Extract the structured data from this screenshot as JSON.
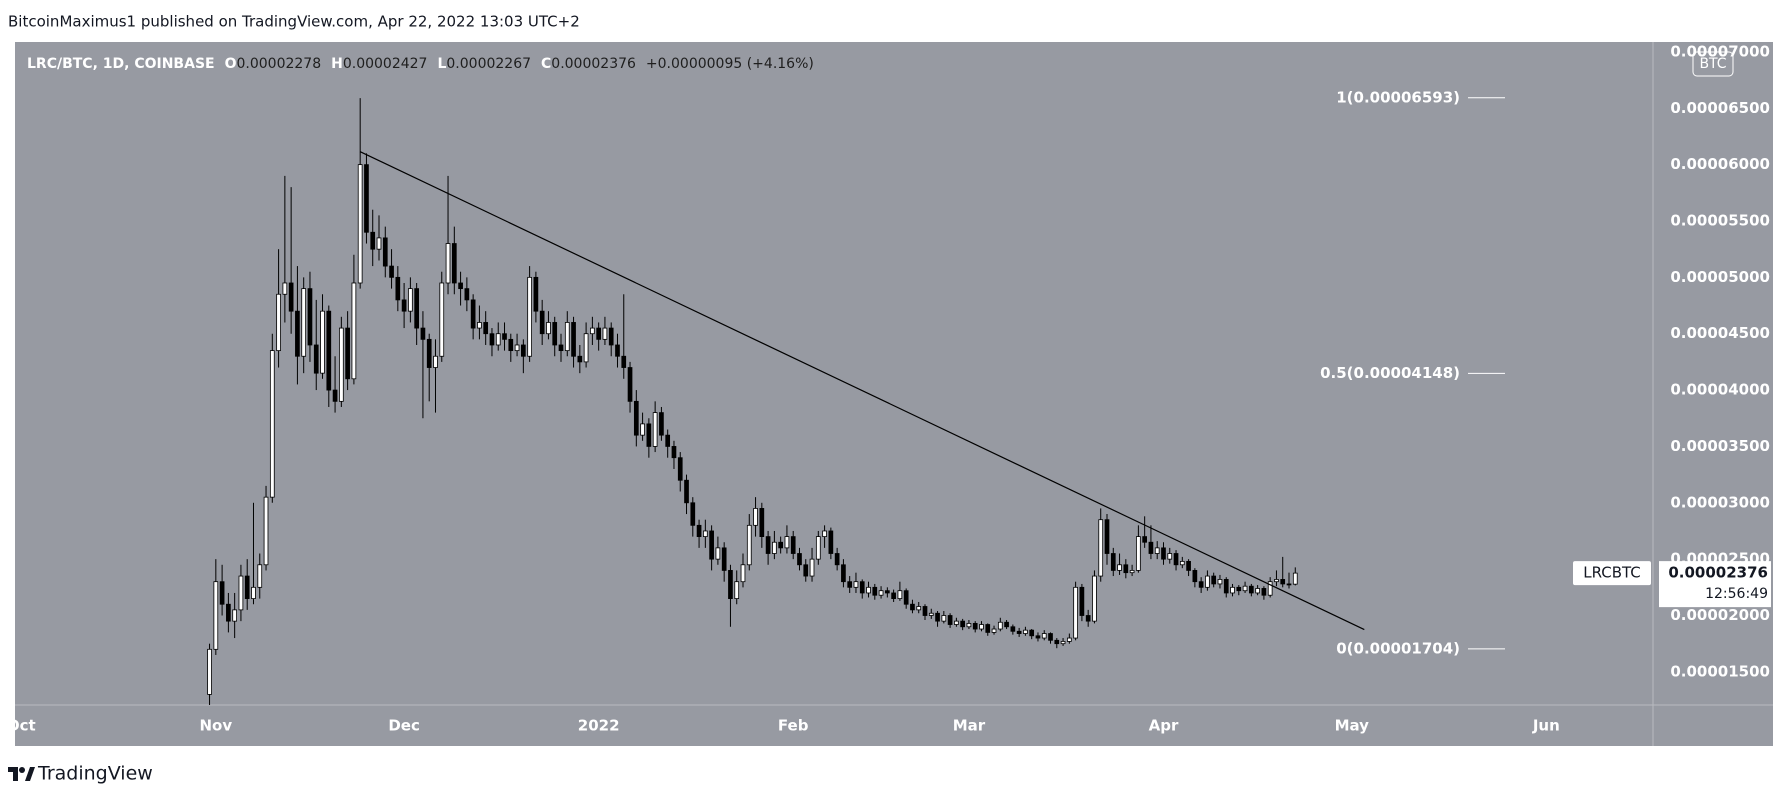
{
  "header": "BitcoinMaximus1 published on TradingView.com, Apr 22, 2022 13:03 UTC+2",
  "footer": "TradingView",
  "chart_data": {
    "type": "candlestick",
    "legend": {
      "title": "LRC/BTC, 1D, COINBASE",
      "fields": [
        {
          "key": "O",
          "value": "0.00002278"
        },
        {
          "key": "H",
          "value": "0.00002427"
        },
        {
          "key": "L",
          "value": "0.00002267"
        },
        {
          "key": "C",
          "value": "0.00002376"
        }
      ],
      "change": "+0.00000095 (+4.16%)"
    },
    "currency": "BTC",
    "symbol": "LRCBTC",
    "last_price": {
      "value": 2.376e-05,
      "label": "0.00002376"
    },
    "countdown": "12:56:49",
    "xlim": [
      -31,
      230
    ],
    "xticks": [
      {
        "value": -30,
        "label": "Oct"
      },
      {
        "value": 1,
        "label": "Nov"
      },
      {
        "value": 31,
        "label": "Dec"
      },
      {
        "value": 62,
        "label": "2022"
      },
      {
        "value": 93,
        "label": "Feb"
      },
      {
        "value": 121,
        "label": "Mar"
      },
      {
        "value": 152,
        "label": "Apr"
      },
      {
        "value": 182,
        "label": "May"
      },
      {
        "value": 213,
        "label": "Jun"
      }
    ],
    "ylim": [
      1.206e-05,
      7.088e-05
    ],
    "yticks": [
      {
        "value": 1.5e-05,
        "label": "0.00001500"
      },
      {
        "value": 2e-05,
        "label": "0.00002000"
      },
      {
        "value": 2.5e-05,
        "label": "0.00002500"
      },
      {
        "value": 3e-05,
        "label": "0.00003000"
      },
      {
        "value": 3.5e-05,
        "label": "0.00003500"
      },
      {
        "value": 4e-05,
        "label": "0.00004000"
      },
      {
        "value": 4.5e-05,
        "label": "0.00004500"
      },
      {
        "value": 5e-05,
        "label": "0.00005000"
      },
      {
        "value": 5.5e-05,
        "label": "0.00005500"
      },
      {
        "value": 6e-05,
        "label": "0.00006000"
      },
      {
        "value": 6.5e-05,
        "label": "0.00006500"
      },
      {
        "value": 7e-05,
        "label": "0.00007000"
      }
    ],
    "grid": false,
    "up_color": "#ffffff",
    "down_color": "#000000",
    "trendline": {
      "x": [
        24,
        184
      ],
      "y": [
        6.115e-05,
        1.875e-05
      ]
    },
    "fib_levels": [
      {
        "label": "1(0.00006593)",
        "value": 6.593e-05
      },
      {
        "label": "0.5(0.00004148)",
        "value": 4.148e-05
      },
      {
        "label": "0(0.00001704)",
        "value": 1.704e-05
      }
    ],
    "candles": [
      [
        1.3e-05,
        1.75e-05,
        1.2e-05,
        1.7e-05
      ],
      [
        1.7e-05,
        2.5e-05,
        1.65e-05,
        2.3e-05
      ],
      [
        2.3e-05,
        2.45e-05,
        2e-05,
        2.1e-05
      ],
      [
        2.1e-05,
        2.2e-05,
        1.85e-05,
        1.95e-05
      ],
      [
        1.95e-05,
        2.2e-05,
        1.8e-05,
        2.05e-05
      ],
      [
        2.05e-05,
        2.45e-05,
        1.95e-05,
        2.35e-05
      ],
      [
        2.35e-05,
        2.5e-05,
        2.05e-05,
        2.15e-05
      ],
      [
        2.15e-05,
        3e-05,
        2.1e-05,
        2.25e-05
      ],
      [
        2.25e-05,
        2.55e-05,
        2.15e-05,
        2.45e-05
      ],
      [
        2.45e-05,
        3.15e-05,
        2.4e-05,
        3.05e-05
      ],
      [
        3.05e-05,
        4.5e-05,
        3e-05,
        4.35e-05
      ],
      [
        4.35e-05,
        5.25e-05,
        4.2e-05,
        4.85e-05
      ],
      [
        4.85e-05,
        5.9e-05,
        4.6e-05,
        4.95e-05
      ],
      [
        4.95e-05,
        5.8e-05,
        4.5e-05,
        4.7e-05
      ],
      [
        4.7e-05,
        5.1e-05,
        4.05e-05,
        4.3e-05
      ],
      [
        4.3e-05,
        5e-05,
        4.15e-05,
        4.9e-05
      ],
      [
        4.9e-05,
        5.05e-05,
        4.25e-05,
        4.4e-05
      ],
      [
        4.4e-05,
        4.8e-05,
        4e-05,
        4.15e-05
      ],
      [
        4.15e-05,
        4.85e-05,
        4.1e-05,
        4.7e-05
      ],
      [
        4.7e-05,
        4.75e-05,
        3.85e-05,
        4e-05
      ],
      [
        4e-05,
        4.3e-05,
        3.8e-05,
        3.9e-05
      ],
      [
        3.9e-05,
        4.65e-05,
        3.85e-05,
        4.55e-05
      ],
      [
        4.55e-05,
        4.7e-05,
        4e-05,
        4.1e-05
      ],
      [
        4.1e-05,
        5.2e-05,
        4.05e-05,
        4.95e-05
      ],
      [
        4.95e-05,
        6.59e-05,
        4.9e-05,
        6e-05
      ],
      [
        6e-05,
        6.1e-05,
        5.3e-05,
        5.4e-05
      ],
      [
        5.4e-05,
        5.6e-05,
        5.1e-05,
        5.25e-05
      ],
      [
        5.25e-05,
        5.55e-05,
        5.15e-05,
        5.35e-05
      ],
      [
        5.35e-05,
        5.45e-05,
        5e-05,
        5.1e-05
      ],
      [
        5.1e-05,
        5.25e-05,
        4.9e-05,
        5e-05
      ],
      [
        5e-05,
        5.1e-05,
        4.7e-05,
        4.8e-05
      ],
      [
        4.8e-05,
        4.95e-05,
        4.55e-05,
        4.7e-05
      ],
      [
        4.7e-05,
        5e-05,
        4.6e-05,
        4.9e-05
      ],
      [
        4.9e-05,
        4.95e-05,
        4.4e-05,
        4.55e-05
      ],
      [
        4.55e-05,
        4.7e-05,
        3.75e-05,
        4.45e-05
      ],
      [
        4.45e-05,
        4.5e-05,
        3.9e-05,
        4.2e-05
      ],
      [
        4.2e-05,
        4.45e-05,
        3.8e-05,
        4.3e-05
      ],
      [
        4.3e-05,
        5.05e-05,
        4.25e-05,
        4.95e-05
      ],
      [
        4.95e-05,
        5.9e-05,
        4.85e-05,
        5.3e-05
      ],
      [
        5.3e-05,
        5.45e-05,
        4.85e-05,
        4.95e-05
      ],
      [
        4.95e-05,
        5.05e-05,
        4.75e-05,
        4.9e-05
      ],
      [
        4.9e-05,
        5e-05,
        4.7e-05,
        4.8e-05
      ],
      [
        4.8e-05,
        4.85e-05,
        4.45e-05,
        4.55e-05
      ],
      [
        4.55e-05,
        4.75e-05,
        4.45e-05,
        4.6e-05
      ],
      [
        4.6e-05,
        4.7e-05,
        4.4e-05,
        4.5e-05
      ],
      [
        4.5e-05,
        4.55e-05,
        4.3e-05,
        4.4e-05
      ],
      [
        4.4e-05,
        4.6e-05,
        4.35e-05,
        4.5e-05
      ],
      [
        4.5e-05,
        4.6e-05,
        4.35e-05,
        4.45e-05
      ],
      [
        4.45e-05,
        4.5e-05,
        4.25e-05,
        4.35e-05
      ],
      [
        4.35e-05,
        4.5e-05,
        4.3e-05,
        4.4e-05
      ],
      [
        4.4e-05,
        4.45e-05,
        4.15e-05,
        4.3e-05
      ],
      [
        4.3e-05,
        5.1e-05,
        4.25e-05,
        5e-05
      ],
      [
        5e-05,
        5.05e-05,
        4.6e-05,
        4.7e-05
      ],
      [
        4.7e-05,
        4.8e-05,
        4.4e-05,
        4.5e-05
      ],
      [
        4.5e-05,
        4.7e-05,
        4.45e-05,
        4.6e-05
      ],
      [
        4.6e-05,
        4.65e-05,
        4.3e-05,
        4.4e-05
      ],
      [
        4.4e-05,
        4.5e-05,
        4.25e-05,
        4.35e-05
      ],
      [
        4.35e-05,
        4.7e-05,
        4.3e-05,
        4.6e-05
      ],
      [
        4.6e-05,
        4.65e-05,
        4.2e-05,
        4.3e-05
      ],
      [
        4.3e-05,
        4.4e-05,
        4.15e-05,
        4.25e-05
      ],
      [
        4.25e-05,
        4.6e-05,
        4.2e-05,
        4.5e-05
      ],
      [
        4.5e-05,
        4.65e-05,
        4.4e-05,
        4.55e-05
      ],
      [
        4.55e-05,
        4.6e-05,
        4.35e-05,
        4.45e-05
      ],
      [
        4.45e-05,
        4.65e-05,
        4.4e-05,
        4.55e-05
      ],
      [
        4.55e-05,
        4.6e-05,
        4.3e-05,
        4.4e-05
      ],
      [
        4.4e-05,
        4.5e-05,
        4.2e-05,
        4.3e-05
      ],
      [
        4.3e-05,
        4.85e-05,
        4.1e-05,
        4.2e-05
      ],
      [
        4.2e-05,
        4.25e-05,
        3.8e-05,
        3.9e-05
      ],
      [
        3.9e-05,
        4e-05,
        3.5e-05,
        3.6e-05
      ],
      [
        3.6e-05,
        3.8e-05,
        3.55e-05,
        3.7e-05
      ],
      [
        3.7e-05,
        3.75e-05,
        3.4e-05,
        3.5e-05
      ],
      [
        3.5e-05,
        3.9e-05,
        3.45e-05,
        3.8e-05
      ],
      [
        3.8e-05,
        3.85e-05,
        3.55e-05,
        3.6e-05
      ],
      [
        3.6e-05,
        3.65e-05,
        3.4e-05,
        3.5e-05
      ],
      [
        3.5e-05,
        3.55e-05,
        3.3e-05,
        3.4e-05
      ],
      [
        3.4e-05,
        3.45e-05,
        3.1e-05,
        3.2e-05
      ],
      [
        3.2e-05,
        3.25e-05,
        2.9e-05,
        3e-05
      ],
      [
        3e-05,
        3.05e-05,
        2.7e-05,
        2.8e-05
      ],
      [
        2.8e-05,
        2.85e-05,
        2.6e-05,
        2.7e-05
      ],
      [
        2.7e-05,
        2.85e-05,
        2.6e-05,
        2.75e-05
      ],
      [
        2.75e-05,
        2.8e-05,
        2.4e-05,
        2.5e-05
      ],
      [
        2.5e-05,
        2.7e-05,
        2.45e-05,
        2.6e-05
      ],
      [
        2.6e-05,
        2.65e-05,
        2.3e-05,
        2.4e-05
      ],
      [
        2.4e-05,
        2.45e-05,
        1.9e-05,
        2.15e-05
      ],
      [
        2.15e-05,
        2.4e-05,
        2.1e-05,
        2.3e-05
      ],
      [
        2.3e-05,
        2.55e-05,
        2.25e-05,
        2.45e-05
      ],
      [
        2.45e-05,
        2.9e-05,
        2.4e-05,
        2.8e-05
      ],
      [
        2.8e-05,
        3.05e-05,
        2.7e-05,
        2.95e-05
      ],
      [
        2.95e-05,
        3e-05,
        2.6e-05,
        2.7e-05
      ],
      [
        2.7e-05,
        2.75e-05,
        2.45e-05,
        2.55e-05
      ],
      [
        2.55e-05,
        2.75e-05,
        2.5e-05,
        2.65e-05
      ],
      [
        2.65e-05,
        2.7e-05,
        2.55e-05,
        2.6e-05
      ],
      [
        2.6e-05,
        2.8e-05,
        2.55e-05,
        2.7e-05
      ],
      [
        2.7e-05,
        2.75e-05,
        2.5e-05,
        2.55e-05
      ],
      [
        2.55e-05,
        2.6e-05,
        2.4e-05,
        2.45e-05
      ],
      [
        2.45e-05,
        2.5e-05,
        2.3e-05,
        2.35e-05
      ],
      [
        2.35e-05,
        2.6e-05,
        2.3e-05,
        2.5e-05
      ],
      [
        2.5e-05,
        2.75e-05,
        2.45e-05,
        2.7e-05
      ],
      [
        2.7e-05,
        2.8e-05,
        2.6e-05,
        2.75e-05
      ],
      [
        2.75e-05,
        2.78e-05,
        2.5e-05,
        2.55e-05
      ],
      [
        2.55e-05,
        2.6e-05,
        2.4e-05,
        2.45e-05
      ],
      [
        2.45e-05,
        2.5e-05,
        2.25e-05,
        2.3e-05
      ],
      [
        2.3e-05,
        2.35e-05,
        2.2e-05,
        2.25e-05
      ],
      [
        2.25e-05,
        2.38e-05,
        2.2e-05,
        2.3e-05
      ],
      [
        2.3e-05,
        2.32e-05,
        2.15e-05,
        2.2e-05
      ],
      [
        2.2e-05,
        2.3e-05,
        2.16e-05,
        2.25e-05
      ],
      [
        2.25e-05,
        2.28e-05,
        2.14e-05,
        2.18e-05
      ],
      [
        2.18e-05,
        2.26e-05,
        2.15e-05,
        2.22e-05
      ],
      [
        2.22e-05,
        2.25e-05,
        2.16e-05,
        2.2e-05
      ],
      [
        2.2e-05,
        2.23e-05,
        2.12e-05,
        2.15e-05
      ],
      [
        2.15e-05,
        2.3e-05,
        2.13e-05,
        2.22e-05
      ],
      [
        2.22e-05,
        2.24e-05,
        2.06e-05,
        2.1e-05
      ],
      [
        2.1e-05,
        2.14e-05,
        2.02e-05,
        2.05e-05
      ],
      [
        2.05e-05,
        2.12e-05,
        2.02e-05,
        2.08e-05
      ],
      [
        2.08e-05,
        2.1e-05,
        1.96e-05,
        2e-05
      ],
      [
        2e-05,
        2.06e-05,
        1.97e-05,
        2.02e-05
      ],
      [
        2.02e-05,
        2.04e-05,
        1.9e-05,
        1.95e-05
      ],
      [
        1.95e-05,
        2.04e-05,
        1.93e-05,
        2e-05
      ],
      [
        2e-05,
        2.02e-05,
        1.89e-05,
        1.92e-05
      ],
      [
        1.92e-05,
        1.98e-05,
        1.9e-05,
        1.95e-05
      ],
      [
        1.95e-05,
        1.97e-05,
        1.87e-05,
        1.9e-05
      ],
      [
        1.9e-05,
        1.96e-05,
        1.88e-05,
        1.93e-05
      ],
      [
        1.93e-05,
        1.95e-05,
        1.85e-05,
        1.88e-05
      ],
      [
        1.88e-05,
        1.95e-05,
        1.86e-05,
        1.92e-05
      ],
      [
        1.92e-05,
        1.93e-05,
        1.82e-05,
        1.85e-05
      ],
      [
        1.85e-05,
        1.91e-05,
        1.83e-05,
        1.88e-05
      ],
      [
        1.88e-05,
        1.98e-05,
        1.86e-05,
        1.94e-05
      ],
      [
        1.94e-05,
        1.96e-05,
        1.88e-05,
        1.9e-05
      ],
      [
        1.9e-05,
        1.92e-05,
        1.83e-05,
        1.86e-05
      ],
      [
        1.86e-05,
        1.89e-05,
        1.81e-05,
        1.84e-05
      ],
      [
        1.84e-05,
        1.9e-05,
        1.82e-05,
        1.87e-05
      ],
      [
        1.87e-05,
        1.88e-05,
        1.79e-05,
        1.82e-05
      ],
      [
        1.82e-05,
        1.85e-05,
        1.77e-05,
        1.8e-05
      ],
      [
        1.8e-05,
        1.87e-05,
        1.78e-05,
        1.84e-05
      ],
      [
        1.84e-05,
        1.85e-05,
        1.75e-05,
        1.78e-05
      ],
      [
        1.78e-05,
        1.8e-05,
        1.71e-05,
        1.75e-05
      ],
      [
        1.75e-05,
        1.8e-05,
        1.73e-05,
        1.77e-05
      ],
      [
        1.77e-05,
        1.84e-05,
        1.75e-05,
        1.8e-05
      ],
      [
        1.8e-05,
        2.3e-05,
        1.78e-05,
        2.25e-05
      ],
      [
        2.25e-05,
        2.28e-05,
        1.95e-05,
        2e-05
      ],
      [
        2e-05,
        2.05e-05,
        1.9e-05,
        1.95e-05
      ],
      [
        1.95e-05,
        2.4e-05,
        1.93e-05,
        2.35e-05
      ],
      [
        2.35e-05,
        2.95e-05,
        2.3e-05,
        2.85e-05
      ],
      [
        2.85e-05,
        2.9e-05,
        2.45e-05,
        2.55e-05
      ],
      [
        2.55e-05,
        2.6e-05,
        2.35e-05,
        2.4e-05
      ],
      [
        2.4e-05,
        2.55e-05,
        2.36e-05,
        2.45e-05
      ],
      [
        2.45e-05,
        2.5e-05,
        2.33e-05,
        2.38e-05
      ],
      [
        2.38e-05,
        2.45e-05,
        2.35e-05,
        2.4e-05
      ],
      [
        2.4e-05,
        2.8e-05,
        2.38e-05,
        2.7e-05
      ],
      [
        2.7e-05,
        2.88e-05,
        2.6e-05,
        2.65e-05
      ],
      [
        2.65e-05,
        2.8e-05,
        2.5e-05,
        2.55e-05
      ],
      [
        2.55e-05,
        2.66e-05,
        2.5e-05,
        2.6e-05
      ],
      [
        2.6e-05,
        2.65e-05,
        2.45e-05,
        2.5e-05
      ],
      [
        2.5e-05,
        2.6e-05,
        2.46e-05,
        2.55e-05
      ],
      [
        2.55e-05,
        2.58e-05,
        2.4e-05,
        2.45e-05
      ],
      [
        2.45e-05,
        2.52e-05,
        2.42e-05,
        2.48e-05
      ],
      [
        2.48e-05,
        2.5e-05,
        2.35e-05,
        2.4e-05
      ],
      [
        2.4e-05,
        2.42e-05,
        2.25e-05,
        2.3e-05
      ],
      [
        2.3e-05,
        2.34e-05,
        2.2e-05,
        2.25e-05
      ],
      [
        2.25e-05,
        2.4e-05,
        2.22e-05,
        2.35e-05
      ],
      [
        2.35e-05,
        2.38e-05,
        2.25e-05,
        2.28e-05
      ],
      [
        2.28e-05,
        2.36e-05,
        2.24e-05,
        2.32e-05
      ],
      [
        2.32e-05,
        2.34e-05,
        2.16e-05,
        2.2e-05
      ],
      [
        2.2e-05,
        2.28e-05,
        2.17e-05,
        2.25e-05
      ],
      [
        2.25e-05,
        2.27e-05,
        2.18e-05,
        2.22e-05
      ],
      [
        2.22e-05,
        2.3e-05,
        2.2e-05,
        2.26e-05
      ],
      [
        2.26e-05,
        2.28e-05,
        2.17e-05,
        2.2e-05
      ],
      [
        2.2e-05,
        2.27e-05,
        2.18e-05,
        2.24e-05
      ],
      [
        2.24e-05,
        2.26e-05,
        2.14e-05,
        2.18e-05
      ],
      [
        2.18e-05,
        2.34e-05,
        2.16e-05,
        2.3e-05
      ],
      [
        2.3e-05,
        2.4e-05,
        2.26e-05,
        2.32e-05
      ],
      [
        2.32e-05,
        2.52e-05,
        2.25e-05,
        2.28e-05
      ],
      [
        2.28e-05,
        2.38e-05,
        2.24e-05,
        2.278e-05
      ],
      [
        2.278e-05,
        2.427e-05,
        2.267e-05,
        2.376e-05
      ]
    ]
  }
}
